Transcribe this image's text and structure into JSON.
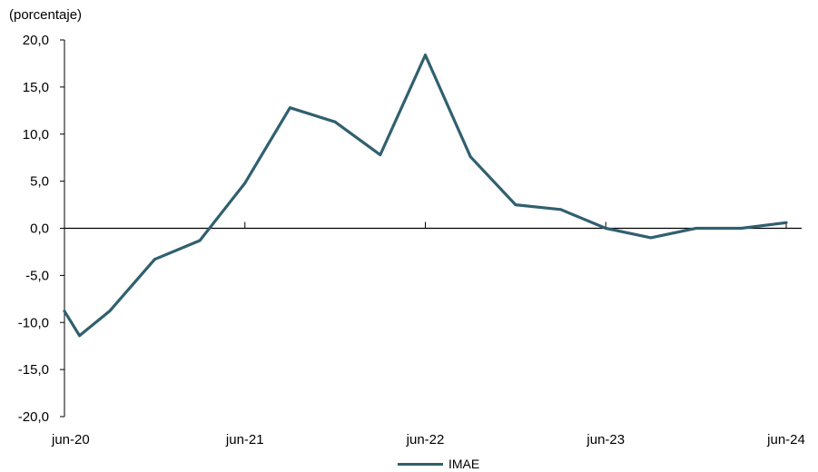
{
  "chart_data": {
    "type": "line",
    "unit_label": "(porcentaje)",
    "ylim": [
      -20,
      20
    ],
    "y_ticks": [
      20,
      15,
      10,
      5,
      0,
      -5,
      -10,
      -15,
      -20
    ],
    "y_tick_labels": [
      "20,0",
      "15,0",
      "10,0",
      "5,0",
      "0,0",
      "-5,0",
      "-10,0",
      "-15,0",
      "-20,0"
    ],
    "x_tick_labels": [
      "jun-20",
      "jun-21",
      "jun-22",
      "jun-23",
      "jun-24"
    ],
    "grid": false,
    "legend_position": "bottom",
    "series": [
      {
        "name": "IMAE",
        "color": "#31606f",
        "x": [
          "2020-06",
          "2020-07",
          "2020-09",
          "2020-12",
          "2021-03",
          "2021-06",
          "2021-09",
          "2021-12",
          "2022-03",
          "2022-06",
          "2022-09",
          "2022-12",
          "2023-03",
          "2023-06",
          "2023-09",
          "2023-12",
          "2024-03",
          "2024-06"
        ],
        "values": [
          -8.8,
          -11.4,
          -8.8,
          -3.3,
          -1.3,
          4.8,
          12.8,
          11.3,
          7.8,
          18.4,
          7.6,
          2.5,
          2.0,
          0.0,
          -1.0,
          0.0,
          0.0,
          0.6
        ]
      }
    ]
  }
}
